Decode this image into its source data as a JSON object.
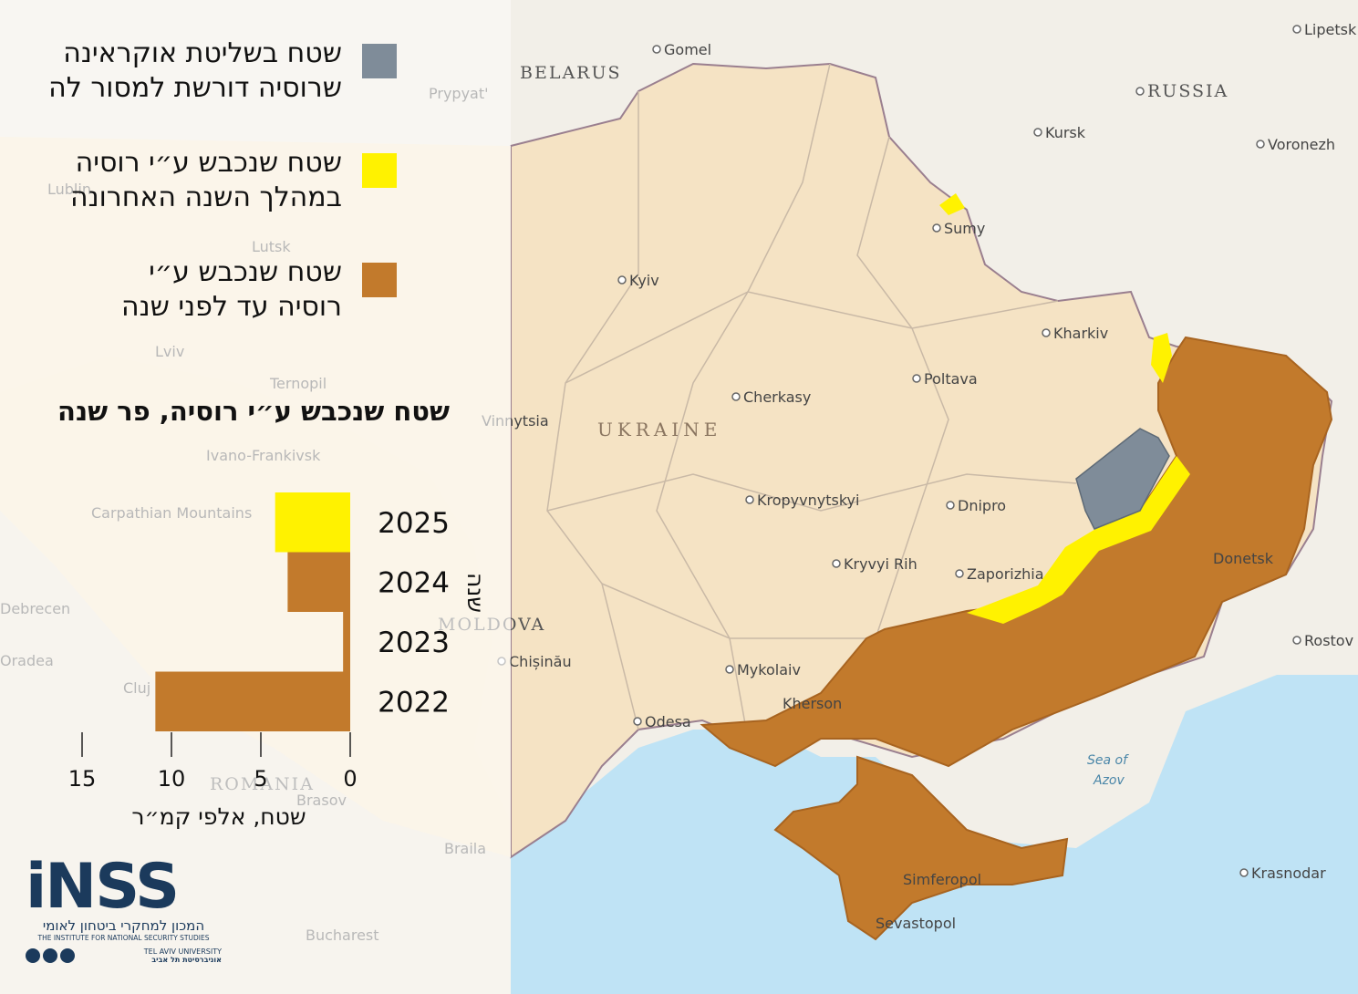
{
  "legend": [
    {
      "lines": [
        "שטח בשליטת אוקראינה",
        "שרוסיה דורשת למסור לה"
      ],
      "color": "#7f8c99"
    },
    {
      "lines": [
        "שטח שנכבש ע״י רוסיה",
        "במהלך השנה האחרונה"
      ],
      "color": "#fff200"
    },
    {
      "lines": [
        "שטח שנכבש ע״י",
        "רוסיה עד לפני שנה"
      ],
      "color": "#c27a2c"
    }
  ],
  "map": {
    "labels": [
      "BELARUS",
      "Gomel",
      "RUSSIA",
      "Lipetsk",
      "Kursk",
      "Voronezh",
      "Lublin",
      "Lutsk",
      "Prypyat'",
      "Kyiv",
      "Sumy",
      "Kharkiv",
      "Lviv",
      "Ternopil",
      "Poltava",
      "Cherkasy",
      "UKRAINE",
      "Vinnytsia",
      "Ivano-Frankivsk",
      "Kropyvnytskyi",
      "Dnipro",
      "Kryvyi Rih",
      "Zaporizhia",
      "Donetsk",
      "Carpathian Mountains",
      "Debrecen",
      "Oradea",
      "MOLDOVA",
      "Chișinău",
      "Mykolaiv",
      "Kherson",
      "Cluj",
      "Odesa",
      "Rostov",
      "Sea of",
      "Azov",
      "ROMANIA",
      "Brasov",
      "Braila",
      "Krasnodar",
      "Simferopol",
      "Sevastopol",
      "Bucharest"
    ]
  },
  "chart_data": {
    "type": "hbar",
    "title": "שטח שנכבש ע״י רוסיה, פר שנה",
    "categories": [
      "2025",
      "2024",
      "2023",
      "2022"
    ],
    "values": [
      4.2,
      3.5,
      0.4,
      10.9
    ],
    "colors": [
      "#fff200",
      "#c27a2c",
      "#c27a2c",
      "#c27a2c"
    ],
    "xlim": [
      15,
      0
    ],
    "xticks": [
      15,
      10,
      5,
      0
    ],
    "xlabel": "שטח, אלפי קמ״ר",
    "ylabel": "שנה"
  },
  "logo": {
    "name": "iNSS",
    "hebrew": "המכון למחקרי ביטחון לאומי",
    "english": "THE INSTITUTE FOR NATIONAL SECURITY STUDIES",
    "university_en": "TEL AVIV UNIVERSITY",
    "university_he": "אוניברסיטת תל אביב"
  }
}
